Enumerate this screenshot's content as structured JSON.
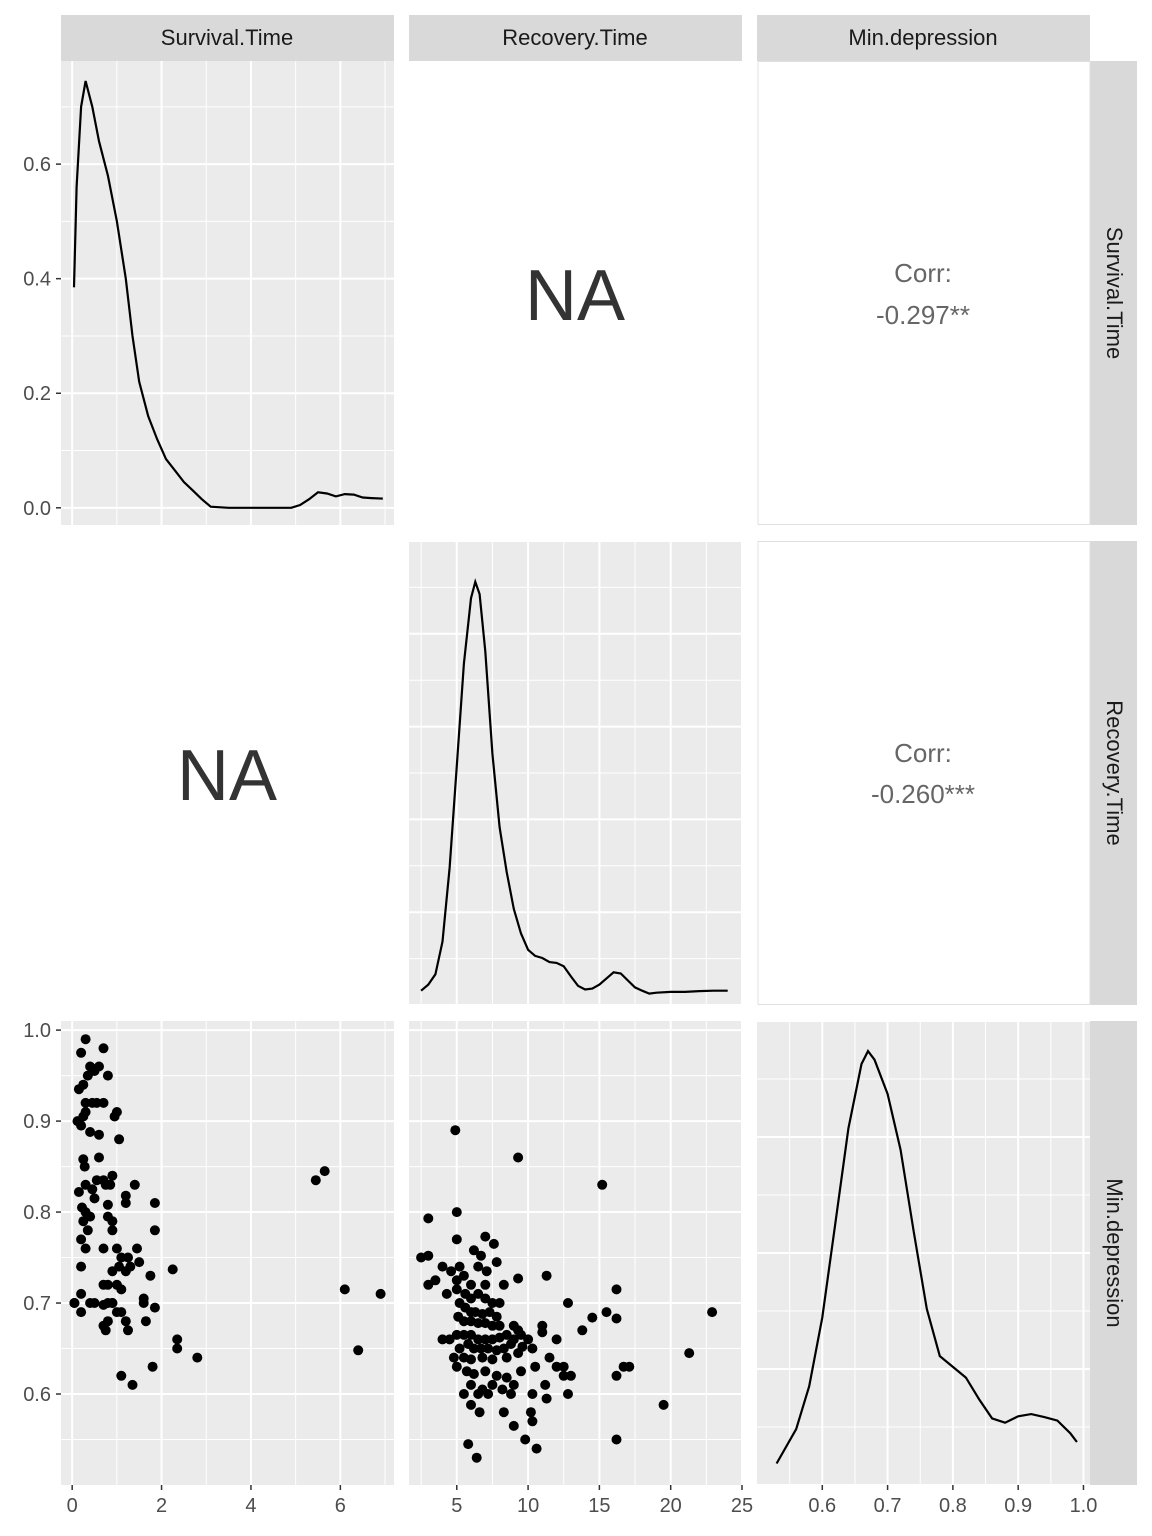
{
  "chart_data": {
    "type": "scatter",
    "variables": [
      "Survival.Time",
      "Recovery.Time",
      "Min.depression"
    ],
    "na_label": "NA",
    "corr_label": "Corr:",
    "correlations": {
      "survival_min": "-0.297**",
      "recovery_min": "-0.260***"
    },
    "axes": {
      "survival": {
        "range": [
          -0.25,
          7.2
        ],
        "ticks": [
          0,
          2,
          4,
          6
        ],
        "tick_labels": [
          "0",
          "2",
          "4",
          "6"
        ]
      },
      "recovery": {
        "range": [
          1.65,
          25
        ],
        "ticks": [
          5,
          10,
          15,
          20,
          25
        ],
        "tick_labels": [
          "5",
          "10",
          "15",
          "20",
          "25"
        ]
      },
      "min_depression": {
        "range": [
          0.5,
          1.01
        ],
        "ticks": [
          0.6,
          0.7,
          0.8,
          0.9,
          1.0
        ],
        "tick_labels": [
          "0.6",
          "0.7",
          "0.8",
          "0.9",
          "1.0"
        ]
      },
      "density_survival_y": {
        "range": [
          -0.03,
          0.78
        ],
        "ticks": [
          0.0,
          0.2,
          0.4,
          0.6
        ],
        "tick_labels": [
          "0.0",
          "0.2",
          "0.4",
          "0.6"
        ]
      }
    },
    "density_survival": [
      [
        0.04,
        0.385
      ],
      [
        0.1,
        0.56
      ],
      [
        0.2,
        0.7
      ],
      [
        0.3,
        0.745
      ],
      [
        0.45,
        0.7
      ],
      [
        0.6,
        0.64
      ],
      [
        0.8,
        0.58
      ],
      [
        1.0,
        0.5
      ],
      [
        1.2,
        0.4
      ],
      [
        1.35,
        0.3
      ],
      [
        1.5,
        0.22
      ],
      [
        1.7,
        0.16
      ],
      [
        1.9,
        0.12
      ],
      [
        2.1,
        0.085
      ],
      [
        2.3,
        0.065
      ],
      [
        2.5,
        0.045
      ],
      [
        2.7,
        0.03
      ],
      [
        2.9,
        0.015
      ],
      [
        3.1,
        0.002
      ],
      [
        3.5,
        0.0
      ],
      [
        4.0,
        0.0
      ],
      [
        4.5,
        0.0
      ],
      [
        4.9,
        0.0
      ],
      [
        5.1,
        0.005
      ],
      [
        5.3,
        0.015
      ],
      [
        5.5,
        0.027
      ],
      [
        5.7,
        0.025
      ],
      [
        5.9,
        0.02
      ],
      [
        6.1,
        0.024
      ],
      [
        6.3,
        0.023
      ],
      [
        6.5,
        0.018
      ],
      [
        6.7,
        0.017
      ],
      [
        6.95,
        0.016
      ]
    ],
    "density_recovery": [
      [
        2.5,
        0.0
      ],
      [
        3.0,
        0.015
      ],
      [
        3.5,
        0.04
      ],
      [
        4.0,
        0.12
      ],
      [
        4.5,
        0.3
      ],
      [
        5.0,
        0.55
      ],
      [
        5.5,
        0.8
      ],
      [
        6.0,
        0.96
      ],
      [
        6.3,
        1.0
      ],
      [
        6.6,
        0.97
      ],
      [
        7.0,
        0.83
      ],
      [
        7.5,
        0.58
      ],
      [
        8.0,
        0.4
      ],
      [
        8.5,
        0.29
      ],
      [
        9.0,
        0.2
      ],
      [
        9.5,
        0.14
      ],
      [
        10.0,
        0.1
      ],
      [
        10.5,
        0.085
      ],
      [
        11.0,
        0.08
      ],
      [
        11.5,
        0.07
      ],
      [
        12.0,
        0.068
      ],
      [
        12.5,
        0.06
      ],
      [
        13.0,
        0.035
      ],
      [
        13.5,
        0.012
      ],
      [
        14.0,
        0.003
      ],
      [
        14.5,
        0.005
      ],
      [
        15.0,
        0.015
      ],
      [
        15.5,
        0.03
      ],
      [
        16.0,
        0.045
      ],
      [
        16.5,
        0.042
      ],
      [
        17.0,
        0.025
      ],
      [
        17.5,
        0.008
      ],
      [
        18.0,
        0.0
      ],
      [
        18.5,
        -0.007
      ],
      [
        19.0,
        -0.005
      ],
      [
        20.0,
        -0.003
      ],
      [
        21.0,
        -0.003
      ],
      [
        22.0,
        -0.001
      ],
      [
        23.0,
        0.0
      ],
      [
        24.0,
        0.0
      ]
    ],
    "density_min": [
      [
        0.53,
        0.04
      ],
      [
        0.56,
        0.12
      ],
      [
        0.58,
        0.22
      ],
      [
        0.6,
        0.38
      ],
      [
        0.62,
        0.6
      ],
      [
        0.64,
        0.82
      ],
      [
        0.66,
        0.97
      ],
      [
        0.67,
        1.0
      ],
      [
        0.68,
        0.98
      ],
      [
        0.7,
        0.9
      ],
      [
        0.72,
        0.77
      ],
      [
        0.74,
        0.58
      ],
      [
        0.76,
        0.4
      ],
      [
        0.78,
        0.29
      ],
      [
        0.8,
        0.265
      ],
      [
        0.82,
        0.24
      ],
      [
        0.84,
        0.19
      ],
      [
        0.86,
        0.145
      ],
      [
        0.88,
        0.135
      ],
      [
        0.9,
        0.15
      ],
      [
        0.92,
        0.155
      ],
      [
        0.94,
        0.148
      ],
      [
        0.96,
        0.14
      ],
      [
        0.98,
        0.11
      ],
      [
        0.99,
        0.09
      ]
    ],
    "scatter_survival_min": [
      [
        0.05,
        0.7
      ],
      [
        0.2,
        0.975
      ],
      [
        0.3,
        0.99
      ],
      [
        0.15,
        0.935
      ],
      [
        0.25,
        0.94
      ],
      [
        0.35,
        0.95
      ],
      [
        0.4,
        0.96
      ],
      [
        0.5,
        0.955
      ],
      [
        0.6,
        0.96
      ],
      [
        0.7,
        0.98
      ],
      [
        0.8,
        0.95
      ],
      [
        0.12,
        0.9
      ],
      [
        0.2,
        0.895
      ],
      [
        0.25,
        0.905
      ],
      [
        0.3,
        0.91
      ],
      [
        0.3,
        0.92
      ],
      [
        0.45,
        0.92
      ],
      [
        0.55,
        0.92
      ],
      [
        0.7,
        0.92
      ],
      [
        1.0,
        0.91
      ],
      [
        0.95,
        0.905
      ],
      [
        0.4,
        0.888
      ],
      [
        0.6,
        0.885
      ],
      [
        1.05,
        0.88
      ],
      [
        0.25,
        0.858
      ],
      [
        0.28,
        0.85
      ],
      [
        0.6,
        0.86
      ],
      [
        0.9,
        0.84
      ],
      [
        0.3,
        0.83
      ],
      [
        0.15,
        0.822
      ],
      [
        0.45,
        0.825
      ],
      [
        0.55,
        0.835
      ],
      [
        0.7,
        0.835
      ],
      [
        0.75,
        0.83
      ],
      [
        0.85,
        0.83
      ],
      [
        1.4,
        0.83
      ],
      [
        0.5,
        0.815
      ],
      [
        0.22,
        0.805
      ],
      [
        0.3,
        0.8
      ],
      [
        0.4,
        0.795
      ],
      [
        0.25,
        0.79
      ],
      [
        0.8,
        0.808
      ],
      [
        1.2,
        0.81
      ],
      [
        1.2,
        0.818
      ],
      [
        1.85,
        0.81
      ],
      [
        0.8,
        0.795
      ],
      [
        0.9,
        0.79
      ],
      [
        0.35,
        0.78
      ],
      [
        0.9,
        0.78
      ],
      [
        1.85,
        0.78
      ],
      [
        0.2,
        0.77
      ],
      [
        0.3,
        0.76
      ],
      [
        0.7,
        0.76
      ],
      [
        1.0,
        0.76
      ],
      [
        1.1,
        0.75
      ],
      [
        1.05,
        0.74
      ],
      [
        1.25,
        0.75
      ],
      [
        1.45,
        0.76
      ],
      [
        1.5,
        0.745
      ],
      [
        0.2,
        0.74
      ],
      [
        0.9,
        0.735
      ],
      [
        1.2,
        0.735
      ],
      [
        1.3,
        0.74
      ],
      [
        1.75,
        0.73
      ],
      [
        2.25,
        0.737
      ],
      [
        0.8,
        0.72
      ],
      [
        1.0,
        0.72
      ],
      [
        1.1,
        0.715
      ],
      [
        0.7,
        0.72
      ],
      [
        0.05,
        0.7
      ],
      [
        0.2,
        0.71
      ],
      [
        0.2,
        0.69
      ],
      [
        0.4,
        0.7
      ],
      [
        0.5,
        0.7
      ],
      [
        0.7,
        0.698
      ],
      [
        0.8,
        0.7
      ],
      [
        0.9,
        0.7
      ],
      [
        1.0,
        0.69
      ],
      [
        1.1,
        0.69
      ],
      [
        1.2,
        0.68
      ],
      [
        1.6,
        0.705
      ],
      [
        1.6,
        0.7
      ],
      [
        1.65,
        0.68
      ],
      [
        1.85,
        0.695
      ],
      [
        0.7,
        0.675
      ],
      [
        0.8,
        0.68
      ],
      [
        0.9,
        0.7
      ],
      [
        0.75,
        0.67
      ],
      [
        1.25,
        0.67
      ],
      [
        2.35,
        0.66
      ],
      [
        2.35,
        0.65
      ],
      [
        2.8,
        0.64
      ],
      [
        1.8,
        0.63
      ],
      [
        1.1,
        0.62
      ],
      [
        1.35,
        0.61
      ],
      [
        5.45,
        0.835
      ],
      [
        5.65,
        0.845
      ],
      [
        6.1,
        0.715
      ],
      [
        6.4,
        0.648
      ],
      [
        6.9,
        0.71
      ]
    ],
    "scatter_recovery_min": [
      [
        4.9,
        0.89
      ],
      [
        9.3,
        0.86
      ],
      [
        15.2,
        0.83
      ],
      [
        5.0,
        0.8
      ],
      [
        3.0,
        0.793
      ],
      [
        7.0,
        0.773
      ],
      [
        7.6,
        0.765
      ],
      [
        5.0,
        0.77
      ],
      [
        6.2,
        0.758
      ],
      [
        6.7,
        0.752
      ],
      [
        2.5,
        0.75
      ],
      [
        3.0,
        0.752
      ],
      [
        4.0,
        0.74
      ],
      [
        4.6,
        0.735
      ],
      [
        5.2,
        0.74
      ],
      [
        5.0,
        0.725
      ],
      [
        6.5,
        0.74
      ],
      [
        7.1,
        0.735
      ],
      [
        7.8,
        0.745
      ],
      [
        5.5,
        0.73
      ],
      [
        6.0,
        0.72
      ],
      [
        7.0,
        0.72
      ],
      [
        8.3,
        0.72
      ],
      [
        9.3,
        0.727
      ],
      [
        11.3,
        0.73
      ],
      [
        3.0,
        0.72
      ],
      [
        3.5,
        0.725
      ],
      [
        4.3,
        0.71
      ],
      [
        5.0,
        0.715
      ],
      [
        5.6,
        0.71
      ],
      [
        6.0,
        0.705
      ],
      [
        6.5,
        0.71
      ],
      [
        7.0,
        0.705
      ],
      [
        7.5,
        0.7
      ],
      [
        8.0,
        0.7
      ],
      [
        5.2,
        0.7
      ],
      [
        5.6,
        0.695
      ],
      [
        6.0,
        0.69
      ],
      [
        6.3,
        0.69
      ],
      [
        6.8,
        0.688
      ],
      [
        7.3,
        0.69
      ],
      [
        7.8,
        0.685
      ],
      [
        5.1,
        0.685
      ],
      [
        5.5,
        0.68
      ],
      [
        6.0,
        0.68
      ],
      [
        6.5,
        0.678
      ],
      [
        7.0,
        0.678
      ],
      [
        7.5,
        0.675
      ],
      [
        8.0,
        0.675
      ],
      [
        9.0,
        0.675
      ],
      [
        9.3,
        0.67
      ],
      [
        11.0,
        0.668
      ],
      [
        12.8,
        0.7
      ],
      [
        14.5,
        0.684
      ],
      [
        15.5,
        0.69
      ],
      [
        16.2,
        0.683
      ],
      [
        16.2,
        0.715
      ],
      [
        22.9,
        0.69
      ],
      [
        5.0,
        0.665
      ],
      [
        5.5,
        0.665
      ],
      [
        6.0,
        0.665
      ],
      [
        6.5,
        0.66
      ],
      [
        7.0,
        0.66
      ],
      [
        7.5,
        0.66
      ],
      [
        8.0,
        0.662
      ],
      [
        8.5,
        0.665
      ],
      [
        9.0,
        0.66
      ],
      [
        9.5,
        0.665
      ],
      [
        10.0,
        0.66
      ],
      [
        11.0,
        0.675
      ],
      [
        13.8,
        0.67
      ],
      [
        4.0,
        0.66
      ],
      [
        4.5,
        0.66
      ],
      [
        5.2,
        0.65
      ],
      [
        5.8,
        0.655
      ],
      [
        6.2,
        0.65
      ],
      [
        6.7,
        0.65
      ],
      [
        7.2,
        0.65
      ],
      [
        7.8,
        0.648
      ],
      [
        8.3,
        0.65
      ],
      [
        8.8,
        0.655
      ],
      [
        9.6,
        0.652
      ],
      [
        10.3,
        0.65
      ],
      [
        11.5,
        0.64
      ],
      [
        12.0,
        0.66
      ],
      [
        4.8,
        0.64
      ],
      [
        5.5,
        0.64
      ],
      [
        6.0,
        0.638
      ],
      [
        6.8,
        0.64
      ],
      [
        7.5,
        0.638
      ],
      [
        8.5,
        0.64
      ],
      [
        9.3,
        0.645
      ],
      [
        12.0,
        0.63
      ],
      [
        12.5,
        0.63
      ],
      [
        12.5,
        0.62
      ],
      [
        13.0,
        0.62
      ],
      [
        21.3,
        0.645
      ],
      [
        16.2,
        0.62
      ],
      [
        16.7,
        0.63
      ],
      [
        17.1,
        0.63
      ],
      [
        5.0,
        0.63
      ],
      [
        5.7,
        0.625
      ],
      [
        6.2,
        0.622
      ],
      [
        7.0,
        0.625
      ],
      [
        7.8,
        0.62
      ],
      [
        8.5,
        0.618
      ],
      [
        9.5,
        0.625
      ],
      [
        10.5,
        0.63
      ],
      [
        6.0,
        0.61
      ],
      [
        6.8,
        0.605
      ],
      [
        7.5,
        0.61
      ],
      [
        8.2,
        0.605
      ],
      [
        9.0,
        0.61
      ],
      [
        11.2,
        0.61
      ],
      [
        5.5,
        0.6
      ],
      [
        6.5,
        0.6
      ],
      [
        7.2,
        0.6
      ],
      [
        8.8,
        0.6
      ],
      [
        10.3,
        0.6
      ],
      [
        11.3,
        0.595
      ],
      [
        12.8,
        0.6
      ],
      [
        6.0,
        0.588
      ],
      [
        6.6,
        0.58
      ],
      [
        8.3,
        0.58
      ],
      [
        10.2,
        0.58
      ],
      [
        19.5,
        0.588
      ],
      [
        9.0,
        0.565
      ],
      [
        10.3,
        0.57
      ],
      [
        9.8,
        0.55
      ],
      [
        16.2,
        0.55
      ],
      [
        5.8,
        0.545
      ],
      [
        10.6,
        0.54
      ],
      [
        6.4,
        0.53
      ]
    ]
  }
}
